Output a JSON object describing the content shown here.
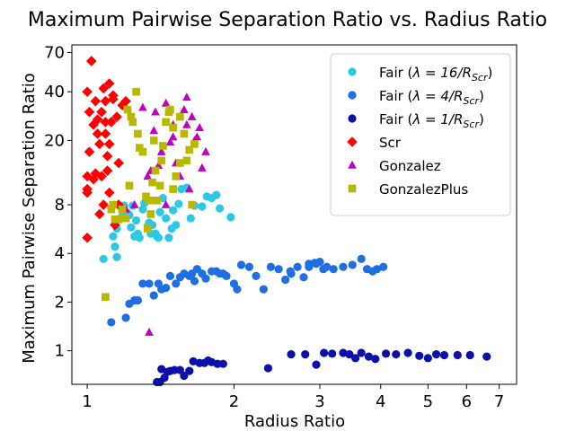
{
  "chart_data": {
    "type": "scatter",
    "title": "Maximum Pairwise Separation Ratio vs. Radius Ratio",
    "xlabel": "Radius Ratio",
    "ylabel": "Maximum Pairwise Separation Ratio",
    "xscale": "log",
    "yscale": "log",
    "xlim": [
      0.93,
      7.6
    ],
    "ylim": [
      0.62,
      78
    ],
    "xticks": [
      1,
      2,
      3,
      4,
      5,
      6,
      7
    ],
    "xtick_labels": [
      "1",
      "2",
      "3",
      "4",
      "5",
      "6",
      "7"
    ],
    "yticks": [
      1,
      2,
      4,
      8,
      20,
      40,
      70
    ],
    "ytick_labels": [
      "1",
      "2",
      "4",
      "8",
      "20",
      "40",
      "70"
    ],
    "grid": false,
    "legend_position": "top-right",
    "series": [
      {
        "name": "Fair (λ = 16/R_Scr)",
        "legend_main": "Fair (",
        "legend_sub": "Scr",
        "legend_lambda": "λ = 16/R",
        "marker": "circle",
        "color": "#2ec8e6",
        "points": [
          [
            1.08,
            3.7
          ],
          [
            1.13,
            5.1
          ],
          [
            1.14,
            4.4
          ],
          [
            1.15,
            3.8
          ],
          [
            1.15,
            5.7
          ],
          [
            1.17,
            6.6
          ],
          [
            1.18,
            7.3
          ],
          [
            1.19,
            7.9
          ],
          [
            1.21,
            7.1
          ],
          [
            1.22,
            6.9
          ],
          [
            1.23,
            5.8
          ],
          [
            1.24,
            7.9
          ],
          [
            1.25,
            5.1
          ],
          [
            1.26,
            6.4
          ],
          [
            1.27,
            5.3
          ],
          [
            1.28,
            5.0
          ],
          [
            1.3,
            7.5
          ],
          [
            1.31,
            8.2
          ],
          [
            1.33,
            5.9
          ],
          [
            1.34,
            6.2
          ],
          [
            1.35,
            5.3
          ],
          [
            1.36,
            6.0
          ],
          [
            1.38,
            5.3
          ],
          [
            1.39,
            5.1
          ],
          [
            1.4,
            5.0
          ],
          [
            1.41,
            7.2
          ],
          [
            1.43,
            8.8
          ],
          [
            1.45,
            6.6
          ],
          [
            1.47,
            5.0
          ],
          [
            1.49,
            5.7
          ],
          [
            1.5,
            7.4
          ],
          [
            1.52,
            6.0
          ],
          [
            1.54,
            8.1
          ],
          [
            1.56,
            10.0
          ],
          [
            1.6,
            10.2
          ],
          [
            1.63,
            6.6
          ],
          [
            1.66,
            7.9
          ],
          [
            1.72,
            7.8
          ],
          [
            1.76,
            9.0
          ],
          [
            1.8,
            8.8
          ],
          [
            1.84,
            9.2
          ],
          [
            1.87,
            7.6
          ],
          [
            1.97,
            6.7
          ]
        ]
      },
      {
        "name": "Fair (λ = 4/R_Scr)",
        "legend_main": "Fair (",
        "legend_sub": "Scr",
        "legend_lambda": "λ = 4/R",
        "marker": "circle",
        "color": "#1f6fe0",
        "points": [
          [
            1.12,
            1.5
          ],
          [
            1.2,
            1.6
          ],
          [
            1.22,
            1.95
          ],
          [
            1.25,
            2.05
          ],
          [
            1.27,
            2.05
          ],
          [
            1.3,
            2.6
          ],
          [
            1.34,
            2.6
          ],
          [
            1.37,
            2.2
          ],
          [
            1.4,
            2.6
          ],
          [
            1.42,
            2.4
          ],
          [
            1.45,
            2.45
          ],
          [
            1.48,
            2.9
          ],
          [
            1.52,
            2.6
          ],
          [
            1.55,
            2.85
          ],
          [
            1.58,
            3.0
          ],
          [
            1.62,
            2.9
          ],
          [
            1.64,
            3.0
          ],
          [
            1.66,
            2.7
          ],
          [
            1.68,
            3.2
          ],
          [
            1.72,
            3.0
          ],
          [
            1.75,
            2.8
          ],
          [
            1.8,
            3.1
          ],
          [
            1.84,
            3.1
          ],
          [
            1.87,
            3.0
          ],
          [
            1.9,
            3.0
          ],
          [
            1.93,
            2.9
          ],
          [
            2.0,
            2.6
          ],
          [
            2.03,
            2.4
          ],
          [
            2.07,
            3.4
          ],
          [
            2.15,
            3.3
          ],
          [
            2.22,
            2.9
          ],
          [
            2.3,
            2.4
          ],
          [
            2.38,
            3.3
          ],
          [
            2.47,
            3.2
          ],
          [
            2.55,
            2.75
          ],
          [
            2.62,
            3.0
          ],
          [
            2.7,
            3.3
          ],
          [
            2.78,
            2.85
          ],
          [
            2.85,
            3.45
          ],
          [
            2.93,
            3.5
          ],
          [
            3.0,
            3.55
          ],
          [
            3.05,
            3.2
          ],
          [
            3.1,
            3.3
          ],
          [
            3.2,
            3.2
          ],
          [
            3.35,
            3.3
          ],
          [
            3.5,
            3.4
          ],
          [
            3.65,
            3.7
          ],
          [
            3.75,
            3.2
          ],
          [
            3.85,
            3.1
          ],
          [
            3.93,
            3.2
          ],
          [
            4.05,
            3.3
          ],
          [
            2.61,
            3.1
          ],
          [
            2.85,
            3.3
          ],
          [
            2.95,
            3.45
          ]
        ]
      },
      {
        "name": "Fair (λ = 1/R_Scr)",
        "legend_main": "Fair (",
        "legend_sub": "Scr",
        "legend_lambda": "λ = 1/R",
        "marker": "circle",
        "color": "#0b10a8",
        "points": [
          [
            1.39,
            0.64
          ],
          [
            1.41,
            0.64
          ],
          [
            1.42,
            0.77
          ],
          [
            1.44,
            0.68
          ],
          [
            1.46,
            0.74
          ],
          [
            1.48,
            0.75
          ],
          [
            1.51,
            0.76
          ],
          [
            1.55,
            0.76
          ],
          [
            1.58,
            0.7
          ],
          [
            1.62,
            0.75
          ],
          [
            1.65,
            0.86
          ],
          [
            1.7,
            0.84
          ],
          [
            1.74,
            0.84
          ],
          [
            1.77,
            0.87
          ],
          [
            1.8,
            0.85
          ],
          [
            1.85,
            0.83
          ],
          [
            1.9,
            0.83
          ],
          [
            2.35,
            0.78
          ],
          [
            2.62,
            0.95
          ],
          [
            2.8,
            0.95
          ],
          [
            2.95,
            0.82
          ],
          [
            3.06,
            0.97
          ],
          [
            3.18,
            0.96
          ],
          [
            3.35,
            0.97
          ],
          [
            3.45,
            0.95
          ],
          [
            3.55,
            0.9
          ],
          [
            3.65,
            0.97
          ],
          [
            3.78,
            0.92
          ],
          [
            3.9,
            0.89
          ],
          [
            4.1,
            0.96
          ],
          [
            4.3,
            0.95
          ],
          [
            4.55,
            0.97
          ],
          [
            4.8,
            0.93
          ],
          [
            5.0,
            0.9
          ],
          [
            5.2,
            0.95
          ],
          [
            5.4,
            0.94
          ],
          [
            5.75,
            0.94
          ],
          [
            6.1,
            0.94
          ],
          [
            6.6,
            0.92
          ]
        ]
      },
      {
        "name": "Scr",
        "marker": "diamond",
        "color": "#ff0000",
        "points": [
          [
            1.0,
            5.0
          ],
          [
            1.0,
            9.5
          ],
          [
            1.0,
            10.0
          ],
          [
            1.0,
            12.0
          ],
          [
            1.01,
            17.0
          ],
          [
            1.01,
            30.0
          ],
          [
            1.0,
            40.0
          ],
          [
            1.02,
            62.0
          ],
          [
            1.03,
            11.5
          ],
          [
            1.03,
            25.0
          ],
          [
            1.04,
            35.0
          ],
          [
            1.04,
            12.5
          ],
          [
            1.05,
            22.0
          ],
          [
            1.05,
            27.0
          ],
          [
            1.06,
            7.0
          ],
          [
            1.06,
            19.0
          ],
          [
            1.07,
            30.0
          ],
          [
            1.07,
            12.0
          ],
          [
            1.08,
            8.0
          ],
          [
            1.08,
            42.0
          ],
          [
            1.09,
            22.0
          ],
          [
            1.09,
            35.0
          ],
          [
            1.1,
            16.0
          ],
          [
            1.1,
            13.0
          ],
          [
            1.11,
            9.5
          ],
          [
            1.11,
            45.0
          ],
          [
            1.11,
            19.0
          ],
          [
            1.12,
            26.0
          ],
          [
            1.13,
            38.0
          ],
          [
            1.14,
            6.0
          ],
          [
            1.15,
            28.0
          ],
          [
            1.16,
            14.5
          ],
          [
            1.16,
            8.0
          ],
          [
            1.18,
            33.0
          ],
          [
            1.2,
            35.0
          ],
          [
            1.13,
            36.0
          ],
          [
            1.09,
            26.0
          ]
        ]
      },
      {
        "name": "Gonzalez",
        "marker": "triangle",
        "color": "#c000c0",
        "points": [
          [
            1.2,
            7.5
          ],
          [
            1.25,
            8.0
          ],
          [
            1.3,
            32.0
          ],
          [
            1.33,
            12.0
          ],
          [
            1.35,
            13.0
          ],
          [
            1.37,
            23.0
          ],
          [
            1.38,
            30.0
          ],
          [
            1.4,
            14.0
          ],
          [
            1.42,
            17.0
          ],
          [
            1.45,
            34.0
          ],
          [
            1.48,
            19.5
          ],
          [
            1.5,
            25.0
          ],
          [
            1.52,
            14.5
          ],
          [
            1.55,
            12.0
          ],
          [
            1.58,
            31.0
          ],
          [
            1.6,
            37.0
          ],
          [
            1.62,
            10.0
          ],
          [
            1.64,
            28.0
          ],
          [
            1.66,
            20.0
          ],
          [
            1.68,
            21.0
          ],
          [
            1.7,
            24.0
          ],
          [
            1.72,
            13.5
          ],
          [
            1.75,
            17.0
          ],
          [
            1.5,
            21.0
          ],
          [
            1.45,
            8.0
          ],
          [
            1.34,
            1.3
          ],
          [
            1.6,
            25.0
          ]
        ]
      },
      {
        "name": "GonzalezPlus",
        "marker": "square",
        "color": "#b8b800",
        "points": [
          [
            1.09,
            2.15
          ],
          [
            1.12,
            7.5
          ],
          [
            1.13,
            8.0
          ],
          [
            1.14,
            6.5
          ],
          [
            1.16,
            6.5
          ],
          [
            1.18,
            7.5
          ],
          [
            1.2,
            6.6
          ],
          [
            1.21,
            31.0
          ],
          [
            1.22,
            10.5
          ],
          [
            1.23,
            28.0
          ],
          [
            1.24,
            26.0
          ],
          [
            1.26,
            40.0
          ],
          [
            1.27,
            22.0
          ],
          [
            1.28,
            18.0
          ],
          [
            1.3,
            17.0
          ],
          [
            1.32,
            9.0
          ],
          [
            1.33,
            5.7
          ],
          [
            1.34,
            8.5
          ],
          [
            1.35,
            7.0
          ],
          [
            1.36,
            11.0
          ],
          [
            1.37,
            20.0
          ],
          [
            1.38,
            13.0
          ],
          [
            1.39,
            8.5
          ],
          [
            1.41,
            10.5
          ],
          [
            1.42,
            15.0
          ],
          [
            1.43,
            18.5
          ],
          [
            1.45,
            26.0
          ],
          [
            1.47,
            30.0
          ],
          [
            1.48,
            31.0
          ],
          [
            1.5,
            24.0
          ],
          [
            1.52,
            12.0
          ],
          [
            1.55,
            14.5
          ],
          [
            1.58,
            22.0
          ],
          [
            1.6,
            15.0
          ],
          [
            1.62,
            17.5
          ],
          [
            1.64,
            8.0
          ],
          [
            1.66,
            19.0
          ],
          [
            1.55,
            28.0
          ],
          [
            1.5,
            10.0
          ]
        ]
      }
    ]
  }
}
